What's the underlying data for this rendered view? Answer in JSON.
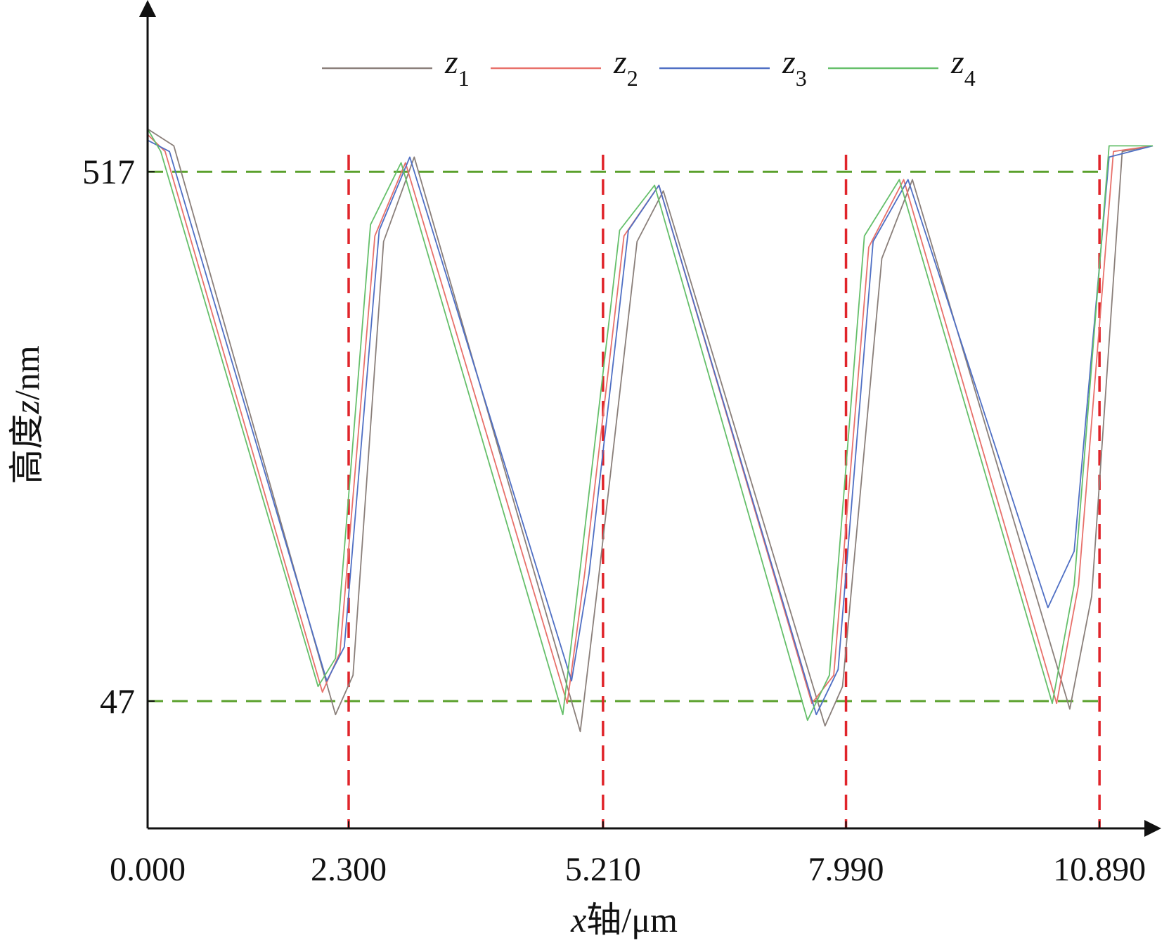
{
  "chart_data": {
    "type": "line",
    "xlabel": {
      "var": "x",
      "rest": "轴/μm"
    },
    "ylabel": {
      "prefix": "高度",
      "var": "z",
      "rest": "/nm"
    },
    "xlim": [
      0,
      11.5
    ],
    "ylim": [
      -66,
      662
    ],
    "x_ticks": [
      {
        "value": 0.0,
        "label": "0.000"
      },
      {
        "value": 2.3,
        "label": "2.300"
      },
      {
        "value": 5.21,
        "label": "5.210"
      },
      {
        "value": 7.99,
        "label": "7.990"
      },
      {
        "value": 10.89,
        "label": "10.890"
      }
    ],
    "y_ticks": [
      {
        "value": 47,
        "label": "47"
      },
      {
        "value": 517,
        "label": "517"
      }
    ],
    "reference_lines": {
      "horizontal": [
        {
          "value": 517,
          "color": "#5aa02c",
          "style": "dashed"
        },
        {
          "value": 47,
          "color": "#5aa02c",
          "style": "dashed"
        }
      ],
      "vertical": [
        {
          "value": 2.3,
          "color": "#e0242a",
          "style": "dashed"
        },
        {
          "value": 5.21,
          "color": "#e0242a",
          "style": "dashed"
        },
        {
          "value": 7.99,
          "color": "#e0242a",
          "style": "dashed"
        },
        {
          "value": 10.89,
          "color": "#e0242a",
          "style": "dashed"
        }
      ]
    },
    "legend": {
      "placement": "top"
    },
    "series": [
      {
        "name": "z",
        "sub": "1",
        "color": "#8a7f7a",
        "x": [
          0.0,
          0.3,
          2.15,
          2.35,
          2.7,
          3.05,
          4.95,
          5.15,
          5.6,
          5.9,
          7.75,
          7.95,
          8.4,
          8.75,
          10.55,
          10.8,
          11.15,
          11.5
        ],
        "y": [
          555,
          540,
          35,
          70,
          455,
          530,
          20,
          150,
          455,
          500,
          25,
          60,
          440,
          510,
          40,
          140,
          535,
          540
        ]
      },
      {
        "name": "z",
        "sub": "2",
        "color": "#e8706a",
        "x": [
          0.0,
          0.2,
          2.0,
          2.2,
          2.6,
          2.95,
          4.8,
          5.0,
          5.45,
          5.85,
          7.6,
          7.85,
          8.25,
          8.65,
          10.4,
          10.65,
          11.05,
          11.5
        ],
        "y": [
          550,
          535,
          55,
          90,
          460,
          525,
          45,
          160,
          460,
          505,
          45,
          70,
          450,
          510,
          45,
          150,
          535,
          540
        ]
      },
      {
        "name": "z",
        "sub": "3",
        "color": "#4f6fc4",
        "x": [
          0.0,
          0.25,
          2.05,
          2.25,
          2.65,
          3.0,
          4.85,
          5.05,
          5.5,
          5.85,
          7.65,
          7.9,
          8.3,
          8.7,
          10.3,
          10.6,
          11.0,
          11.5
        ],
        "y": [
          545,
          535,
          65,
          95,
          465,
          530,
          65,
          160,
          465,
          505,
          35,
          75,
          455,
          510,
          130,
          180,
          530,
          540
        ]
      },
      {
        "name": "z",
        "sub": "4",
        "color": "#65bf6a",
        "x": [
          0.0,
          0.15,
          1.95,
          2.15,
          2.55,
          2.9,
          4.75,
          4.95,
          5.4,
          5.8,
          7.55,
          7.8,
          8.2,
          8.6,
          10.35,
          10.6,
          11.0,
          11.5
        ],
        "y": [
          555,
          535,
          60,
          85,
          470,
          525,
          35,
          165,
          465,
          505,
          30,
          70,
          460,
          510,
          45,
          150,
          540,
          540
        ]
      }
    ]
  }
}
